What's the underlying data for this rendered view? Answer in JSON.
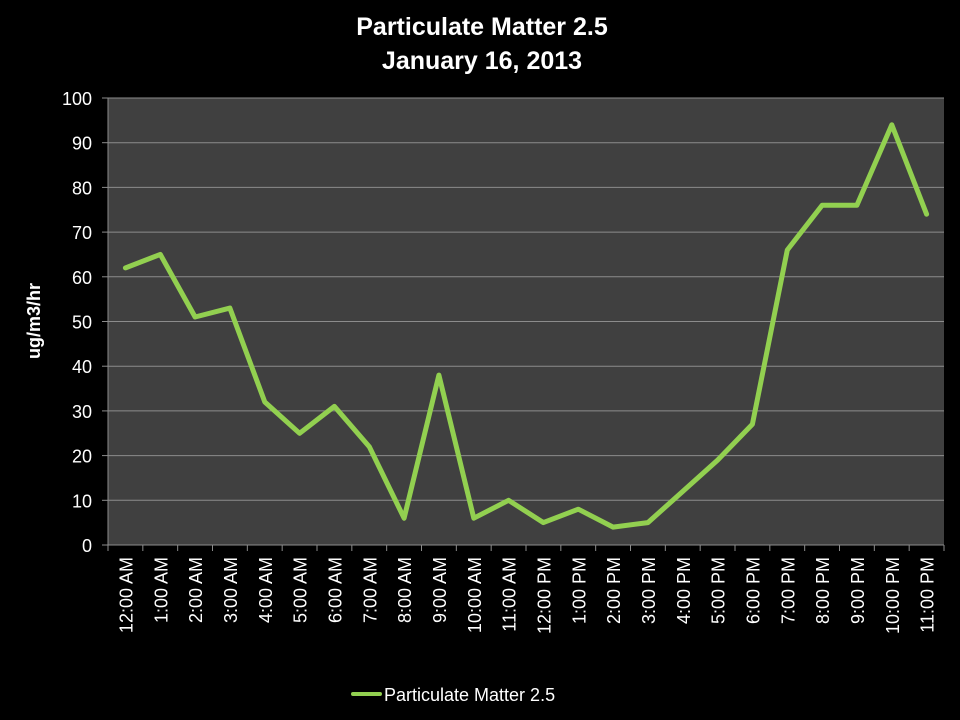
{
  "chart_data": {
    "type": "line",
    "title": "Particulate Matter 2.5",
    "subtitle": "January 16, 2013",
    "xlabel": "",
    "ylabel": "ug/m3/hr",
    "ylim": [
      0,
      100
    ],
    "yticks": [
      0,
      10,
      20,
      30,
      40,
      50,
      60,
      70,
      80,
      90,
      100
    ],
    "grid": true,
    "legend_position": "bottom",
    "categories": [
      "12:00 AM",
      "1:00 AM",
      "2:00 AM",
      "3:00 AM",
      "4:00 AM",
      "5:00 AM",
      "6:00 AM",
      "7:00 AM",
      "8:00 AM",
      "9:00 AM",
      "10:00 AM",
      "11:00 AM",
      "12:00 PM",
      "1:00 PM",
      "2:00 PM",
      "3:00 PM",
      "4:00 PM",
      "5:00 PM",
      "6:00 PM",
      "7:00 PM",
      "8:00 PM",
      "9:00 PM",
      "10:00 PM",
      "11:00 PM"
    ],
    "series": [
      {
        "name": "Particulate Matter 2.5",
        "color": "#92d050",
        "values": [
          62,
          65,
          51,
          53,
          32,
          25,
          31,
          22,
          6,
          38,
          6,
          10,
          5,
          8,
          4,
          5,
          12,
          19,
          27,
          66,
          76,
          76,
          94,
          74
        ]
      }
    ]
  },
  "colors": {
    "background": "#000000",
    "plot_area": "#404040",
    "gridline": "#8c8c8c",
    "text": "#ffffff"
  }
}
